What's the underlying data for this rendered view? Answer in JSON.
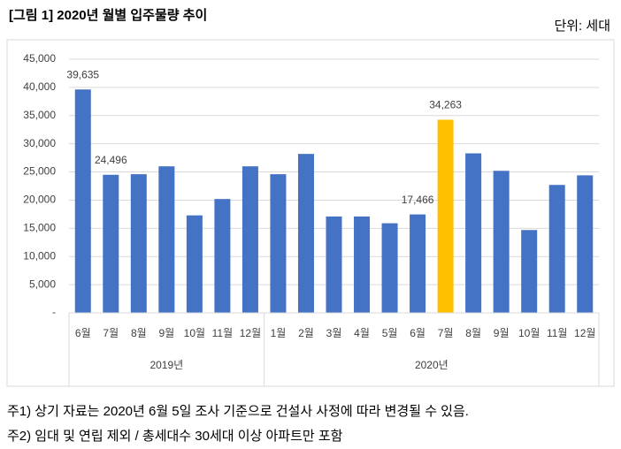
{
  "chart_data": {
    "type": "bar",
    "title": "[그림 1] 2020년 월별 입주물량 추이",
    "unit": "단위: 세대",
    "notes": [
      "주1) 상기 자료는 2020년 6월 5일 조사 기준으로 건설사 사정에 따라 변경될 수 있음.",
      "주2) 임대 및 연립 제외 / 총세대수 30세대 이상 아파트만 포함"
    ],
    "ylim": [
      0,
      45000
    ],
    "yticks": [
      {
        "value": 0,
        "label": "-"
      },
      {
        "value": 5000,
        "label": "5,000"
      },
      {
        "value": 10000,
        "label": "10,000"
      },
      {
        "value": 15000,
        "label": "15,000"
      },
      {
        "value": 20000,
        "label": "20,000"
      },
      {
        "value": 25000,
        "label": "25,000"
      },
      {
        "value": 30000,
        "label": "30,000"
      },
      {
        "value": 35000,
        "label": "35,000"
      },
      {
        "value": 40000,
        "label": "40,000"
      },
      {
        "value": 45000,
        "label": "45,000"
      }
    ],
    "grid": true,
    "groups": [
      {
        "name": "2019년",
        "categories": [
          "6월",
          "7월",
          "8월",
          "9월",
          "10월",
          "11월",
          "12월"
        ],
        "values": [
          39635,
          24496,
          24600,
          26000,
          17300,
          20200,
          26000
        ],
        "value_labels": [
          "39,635",
          "24,496",
          null,
          null,
          null,
          null,
          null
        ],
        "colors": [
          "#4472c4",
          "#4472c4",
          "#4472c4",
          "#4472c4",
          "#4472c4",
          "#4472c4",
          "#4472c4"
        ]
      },
      {
        "name": "2020년",
        "categories": [
          "1월",
          "2월",
          "3월",
          "4월",
          "5월",
          "6월",
          "7월",
          "8월",
          "9월",
          "10월",
          "11월",
          "12월"
        ],
        "values": [
          24600,
          28200,
          17100,
          17100,
          15900,
          17466,
          34263,
          28300,
          25200,
          14700,
          22700,
          24400
        ],
        "value_labels": [
          null,
          null,
          null,
          null,
          null,
          "17,466",
          "34,263",
          null,
          null,
          null,
          null,
          null
        ],
        "colors": [
          "#4472c4",
          "#4472c4",
          "#4472c4",
          "#4472c4",
          "#4472c4",
          "#4472c4",
          "#ffc000",
          "#4472c4",
          "#4472c4",
          "#4472c4",
          "#4472c4",
          "#4472c4"
        ]
      }
    ]
  }
}
